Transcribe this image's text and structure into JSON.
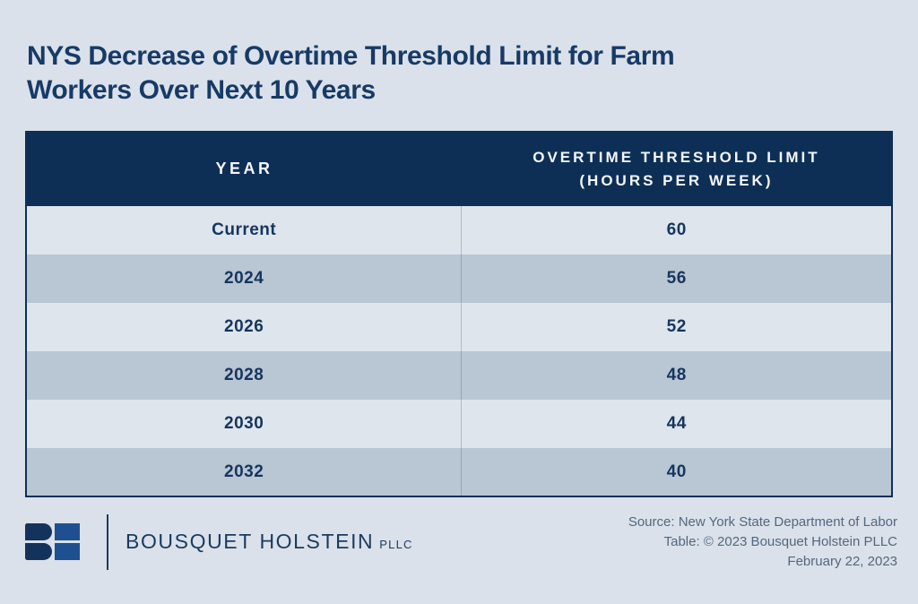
{
  "page": {
    "title": "NYS Decrease of Overtime Threshold Limit for Farm Workers Over Next 10 Years"
  },
  "table": {
    "header": {
      "year_label": "YEAR",
      "threshold_line1": "OVERTIME THRESHOLD LIMIT",
      "threshold_line2": "(HOURS PER WEEK)"
    }
  },
  "chart_data": {
    "type": "table",
    "title": "NYS Decrease of Overtime Threshold Limit for Farm Workers Over Next 10 Years",
    "columns": [
      "YEAR",
      "OVERTIME THRESHOLD LIMIT (HOURS PER WEEK)"
    ],
    "rows": [
      [
        "Current",
        60
      ],
      [
        "2024",
        56
      ],
      [
        "2026",
        52
      ],
      [
        "2028",
        48
      ],
      [
        "2030",
        44
      ],
      [
        "2032",
        40
      ]
    ]
  },
  "footer": {
    "brand": {
      "name": "BOUSQUET HOLSTEIN",
      "suffix": "PLLC"
    },
    "source_lines": [
      "Source: New York State Department of Labor",
      "Table: © 2023 Bousquet Holstein PLLC",
      "February 22, 2023"
    ]
  },
  "colors": {
    "background": "#dae1ea",
    "header_navy": "#0e2f55",
    "title_navy": "#173a66",
    "row_light": "#dee5ec",
    "row_dark": "#b9c6d3",
    "cell_text": "#16355e",
    "logo_navy": "#14335c",
    "logo_blue": "#1e4f91",
    "source_text": "#54677e"
  }
}
